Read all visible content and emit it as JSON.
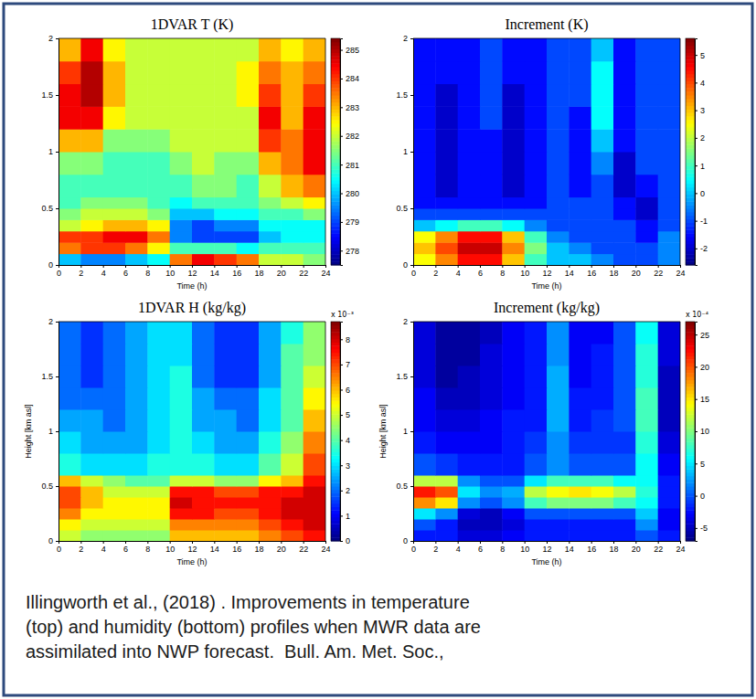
{
  "chart_data": [
    {
      "type": "heatmap",
      "title": "1DVAR T (K)",
      "xlabel": "Time (h)",
      "xlim": [
        0,
        24
      ],
      "ylim": [
        0,
        2
      ],
      "xticks": [
        0,
        2,
        4,
        6,
        8,
        10,
        12,
        14,
        16,
        18,
        20,
        22,
        24
      ],
      "yticks": [
        0,
        0.5,
        1,
        1.5,
        2
      ],
      "x_edges": [
        0,
        2,
        4,
        6,
        8,
        10,
        12,
        14,
        16,
        18,
        20,
        22,
        24
      ],
      "y_edges": [
        0,
        0.1,
        0.2,
        0.3,
        0.4,
        0.5,
        0.6,
        0.8,
        1.0,
        1.2,
        1.4,
        1.6,
        1.8,
        2.0
      ],
      "cells": [
        [
          280,
          279.5,
          279.5,
          280,
          280.5,
          283.5,
          284.5,
          284,
          283.5,
          282,
          282,
          281.5
        ],
        [
          283.5,
          284,
          284,
          283.5,
          282.5,
          281,
          281,
          281,
          280.5,
          281,
          281,
          281
        ],
        [
          284,
          284,
          284.5,
          284.5,
          283.5,
          279.5,
          279,
          279,
          279,
          280,
          280.5,
          280.5
        ],
        [
          282,
          282.5,
          283,
          283,
          282.5,
          279.5,
          279,
          279.5,
          279.5,
          280.5,
          280.5,
          280.5
        ],
        [
          281.5,
          282,
          282,
          282,
          281.5,
          280,
          280,
          280.5,
          280.5,
          281,
          281,
          281.5
        ],
        [
          281,
          281.5,
          281.5,
          281.5,
          281,
          280.5,
          281,
          281,
          281,
          281.5,
          282,
          282.5
        ],
        [
          281,
          281,
          281,
          281,
          281,
          281,
          281.5,
          281.5,
          281,
          282,
          283,
          283.5
        ],
        [
          281.5,
          281.5,
          281,
          281,
          281,
          281.5,
          282,
          281.5,
          281.5,
          283,
          283.5,
          284.5
        ],
        [
          283,
          283,
          281.5,
          281.5,
          281.5,
          282,
          282,
          282,
          282,
          284,
          283.5,
          284.5
        ],
        [
          284.5,
          284.5,
          282.5,
          282,
          282,
          282,
          282,
          282,
          282,
          284.5,
          283,
          284.5
        ],
        [
          284.5,
          285,
          283,
          282,
          282,
          282,
          282,
          282,
          282.5,
          284,
          283,
          284
        ],
        [
          284,
          285,
          283,
          282,
          282,
          282,
          282,
          282,
          282.5,
          283.5,
          283,
          283.5
        ],
        [
          283,
          284.5,
          282.5,
          282,
          282,
          282,
          282,
          282,
          282,
          283,
          282.5,
          283
        ]
      ],
      "colorbar": {
        "range": [
          277.5,
          285.4
        ],
        "ticks": [
          278,
          279,
          280,
          281,
          282,
          283,
          284,
          285
        ]
      }
    },
    {
      "type": "heatmap",
      "title": "Increment (K)",
      "xlabel": "Time (h)",
      "xlim": [
        0,
        24
      ],
      "ylim": [
        0,
        2
      ],
      "xticks": [
        0,
        2,
        4,
        6,
        8,
        10,
        12,
        14,
        16,
        18,
        20,
        22,
        24
      ],
      "yticks": [
        0,
        0.5,
        1,
        1.5,
        2
      ],
      "x_edges": [
        0,
        2,
        4,
        6,
        8,
        10,
        12,
        14,
        16,
        18,
        20,
        22,
        24
      ],
      "y_edges": [
        0,
        0.1,
        0.2,
        0.3,
        0.4,
        0.5,
        0.6,
        0.8,
        1.0,
        1.2,
        1.4,
        1.6,
        1.8,
        2.0
      ],
      "cells": [
        [
          2.5,
          3.5,
          4.5,
          4.5,
          3,
          1,
          0,
          0,
          -0.5,
          -1,
          -1,
          -0.5
        ],
        [
          3,
          4,
          5,
          5,
          3.5,
          1.5,
          0,
          -0.5,
          -1,
          -1,
          -1,
          -0.5
        ],
        [
          2.5,
          3.5,
          4.5,
          4.5,
          3,
          1,
          -0.5,
          -1,
          -1,
          -1,
          -1.5,
          -0.5
        ],
        [
          0,
          0.5,
          1,
          1,
          0.5,
          -0.5,
          -1,
          -1,
          -1,
          -1,
          -1.5,
          -1
        ],
        [
          -1,
          -1,
          -1,
          -1,
          -1,
          -1,
          -1,
          -1,
          -1,
          -1.5,
          -2,
          -1
        ],
        [
          -1.5,
          -1.5,
          -1.5,
          -1.5,
          -1.5,
          -1.5,
          -1,
          -1,
          -1,
          -1.5,
          -2,
          -1
        ],
        [
          -1.5,
          -2,
          -1.5,
          -1.5,
          -2,
          -1.5,
          -1,
          -1.5,
          -1,
          -2,
          -1.5,
          -1
        ],
        [
          -1.5,
          -2,
          -1.5,
          -1.5,
          -2,
          -1.5,
          -1,
          -1.5,
          -0.5,
          -2,
          -1,
          -1
        ],
        [
          -1.5,
          -2,
          -1.5,
          -1.5,
          -2,
          -1.5,
          -1,
          -1.5,
          0,
          -1.5,
          -1,
          -1
        ],
        [
          -1.5,
          -2,
          -1.5,
          -1,
          -2,
          -1.5,
          -1,
          -1.5,
          0.5,
          -1.5,
          -1,
          -1
        ],
        [
          -1.5,
          -2,
          -1.5,
          -1,
          -2,
          -1.5,
          -1,
          -1,
          0.5,
          -1.5,
          -1,
          -1
        ],
        [
          -1.5,
          -1.5,
          -1.5,
          -1,
          -1.5,
          -1.5,
          -1,
          -1,
          0.5,
          -1.5,
          -1,
          -1
        ],
        [
          -1.5,
          -1.5,
          -1.5,
          -1,
          -1.5,
          -1.5,
          -1,
          -1,
          0,
          -1.5,
          -1,
          -1
        ]
      ],
      "colorbar": {
        "range": [
          -2.6,
          5.6
        ],
        "ticks": [
          -2,
          -1,
          0,
          1,
          2,
          3,
          4,
          5
        ]
      }
    },
    {
      "type": "heatmap",
      "title": "1DVAR H (kg/kg)",
      "xlabel": "Time (h)",
      "ylabel": "Height [km asl]",
      "xlim": [
        0,
        24
      ],
      "ylim": [
        0,
        2
      ],
      "xticks": [
        0,
        2,
        4,
        6,
        8,
        10,
        12,
        14,
        16,
        18,
        20,
        22,
        24
      ],
      "yticks": [
        0,
        0.5,
        1,
        1.5,
        2
      ],
      "x_edges": [
        0,
        2,
        4,
        6,
        8,
        10,
        12,
        14,
        16,
        18,
        20,
        22,
        24
      ],
      "y_edges": [
        0,
        0.1,
        0.2,
        0.3,
        0.4,
        0.5,
        0.6,
        0.8,
        1.0,
        1.2,
        1.4,
        1.6,
        1.8,
        2.0
      ],
      "cells": [
        [
          5,
          4.5,
          4.5,
          4.5,
          4.5,
          6,
          6,
          6,
          6,
          6.5,
          7,
          7.5
        ],
        [
          5.5,
          5,
          5,
          5,
          5,
          6.5,
          6.5,
          6.5,
          6.5,
          7,
          7.5,
          8
        ],
        [
          6.5,
          5.5,
          5.5,
          5.5,
          5.5,
          7.5,
          7.5,
          7,
          7,
          7.5,
          8,
          8
        ],
        [
          7,
          6,
          5.5,
          5.5,
          5.5,
          8,
          7.5,
          7.5,
          7.5,
          7.5,
          8,
          8
        ],
        [
          7,
          6,
          5,
          5,
          5,
          7.5,
          7.5,
          7,
          7,
          7.5,
          7.5,
          8
        ],
        [
          6,
          5,
          4.5,
          4,
          4,
          5,
          5,
          4.5,
          4.5,
          5.5,
          6,
          7.5
        ],
        [
          3.5,
          3,
          3,
          3,
          3.5,
          3.5,
          3.5,
          3,
          3,
          4,
          5,
          7
        ],
        [
          3,
          2.5,
          2.5,
          2.5,
          3,
          3.5,
          3,
          2.5,
          2.5,
          3.5,
          4.5,
          6.5
        ],
        [
          2.5,
          2.5,
          2,
          2.5,
          3,
          3.5,
          2.5,
          2.5,
          2,
          3,
          4,
          6
        ],
        [
          2,
          2,
          2,
          2.5,
          3,
          3.5,
          2.5,
          2,
          2,
          3,
          4,
          5.5
        ],
        [
          2,
          1.5,
          2,
          2.5,
          3,
          3.5,
          2,
          1.5,
          1.5,
          2.5,
          4,
          5
        ],
        [
          2,
          1.5,
          2,
          2.5,
          3,
          3,
          2,
          1.5,
          1.5,
          2.5,
          4,
          4.5
        ],
        [
          2,
          1.5,
          2,
          2.5,
          3,
          3,
          2,
          1.5,
          1.5,
          2.5,
          3.5,
          4.5
        ]
      ],
      "colorbar": {
        "range": [
          0,
          8.7
        ],
        "ticks": [
          0,
          1,
          2,
          3,
          4,
          5,
          6,
          7,
          8
        ],
        "multiplier": "x 10⁻³"
      }
    },
    {
      "type": "heatmap",
      "title": "Increment (kg/kg)",
      "xlabel": "Time (h)",
      "ylabel": "Height [km asl]",
      "xlim": [
        0,
        24
      ],
      "ylim": [
        0,
        2
      ],
      "xticks": [
        0,
        2,
        4,
        6,
        8,
        10,
        12,
        14,
        16,
        18,
        20,
        22,
        24
      ],
      "yticks": [
        0,
        0.5,
        1,
        1.5,
        2
      ],
      "x_edges": [
        0,
        2,
        4,
        6,
        8,
        10,
        12,
        14,
        16,
        18,
        20,
        22,
        24
      ],
      "y_edges": [
        0,
        0.1,
        0.2,
        0.3,
        0.4,
        0.5,
        0.6,
        0.8,
        1.0,
        1.2,
        1.4,
        1.6,
        1.8,
        2.0
      ],
      "cells": [
        [
          -2,
          -2,
          -4,
          -4,
          -3,
          -2,
          -2,
          -2,
          -2,
          -2,
          0,
          -2
        ],
        [
          0,
          -2,
          -5,
          -5,
          -4,
          -2,
          -2,
          -2,
          -2,
          -2,
          2,
          -3
        ],
        [
          5,
          2,
          -4,
          -5,
          -3,
          0,
          0,
          0,
          0,
          0,
          4,
          -3
        ],
        [
          18,
          15,
          2,
          0,
          2,
          8,
          10,
          10,
          10,
          8,
          6,
          -2
        ],
        [
          22,
          20,
          5,
          2,
          3,
          12,
          14,
          15,
          14,
          12,
          7,
          -2
        ],
        [
          12,
          12,
          2,
          0,
          0,
          5,
          8,
          8,
          8,
          6,
          6,
          -2
        ],
        [
          0,
          -1,
          -2,
          -2,
          -2,
          0,
          2,
          0,
          0,
          0,
          6,
          -3
        ],
        [
          -2,
          -3,
          -3,
          -3,
          -2,
          -1,
          2,
          -1,
          -1,
          -1,
          7,
          -4
        ],
        [
          -3,
          -4,
          -4,
          -3,
          -2,
          -2,
          3,
          -2,
          -1,
          0,
          8,
          -5
        ],
        [
          -3,
          -5,
          -5,
          -4,
          -3,
          -2,
          3,
          -2,
          -2,
          0,
          8,
          -5
        ],
        [
          -4,
          -6,
          -5,
          -4,
          -3,
          -2,
          3,
          -3,
          -2,
          0,
          7,
          -5
        ],
        [
          -4,
          -6,
          -6,
          -4,
          -3,
          -2,
          2,
          -3,
          -2,
          0,
          7,
          -4
        ],
        [
          -4,
          -6,
          -6,
          -5,
          -3,
          -2,
          2,
          -3,
          -3,
          0,
          6,
          -4
        ]
      ],
      "colorbar": {
        "range": [
          -7,
          27
        ],
        "ticks": [
          -5,
          0,
          5,
          10,
          15,
          20,
          25
        ],
        "multiplier": "x 10⁻⁴"
      }
    }
  ],
  "caption": [
    "Illingworth et al., (2018) . Improvements in temperature",
    "(top) and humidity (bottom) profiles when MWR data are",
    "assimilated into NWP forecast.  Bull. Am. Met. Soc.,"
  ]
}
